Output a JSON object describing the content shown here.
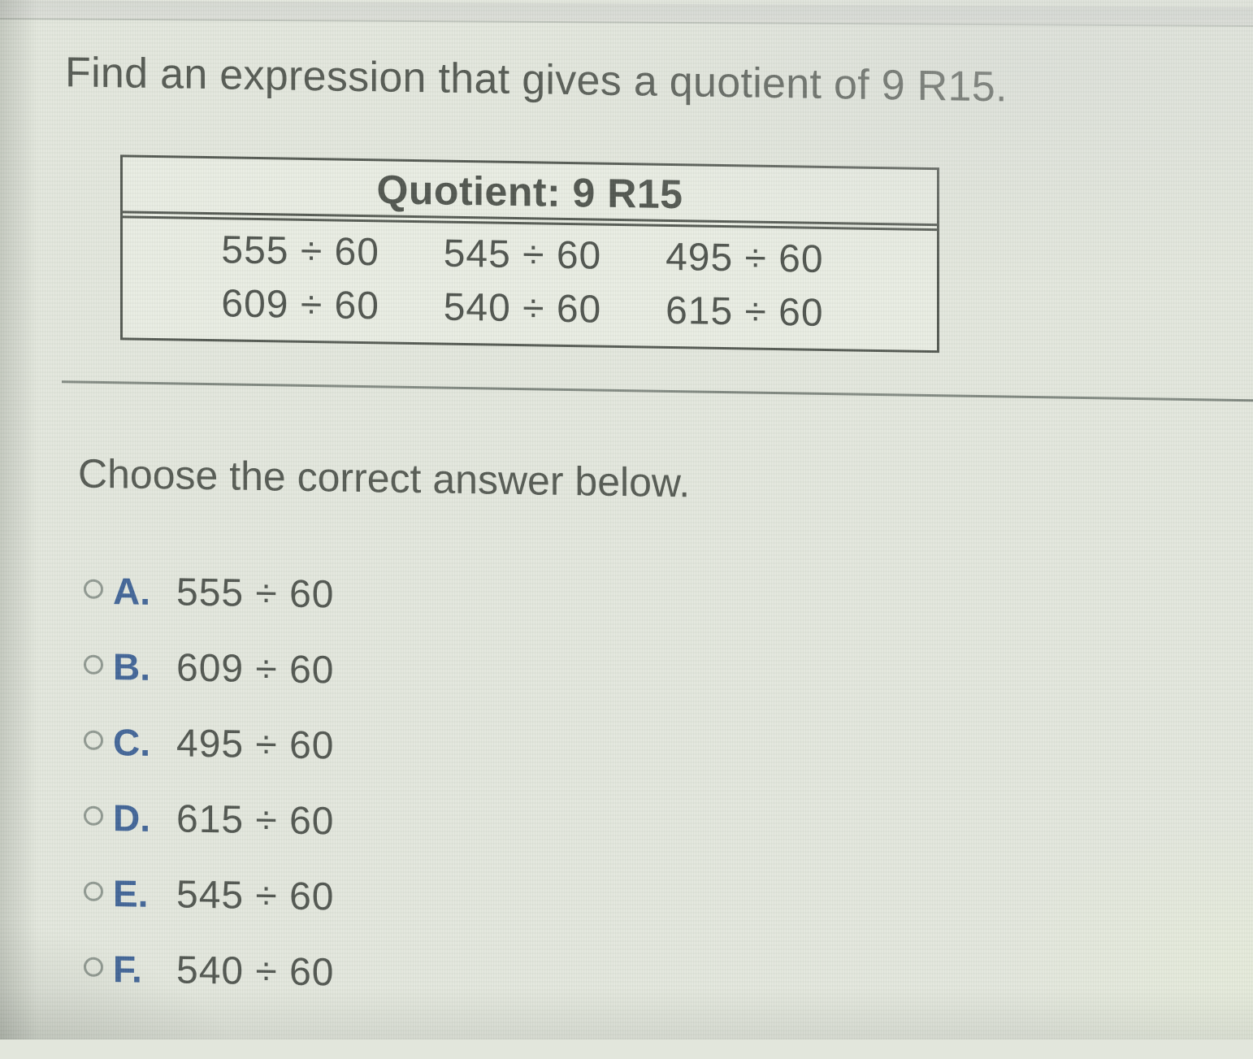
{
  "colors": {
    "background": "#e2e6dc",
    "text": "#51564f",
    "accent_blue": "#3d6195",
    "table_border": "#50554e",
    "divider": "#7d857d",
    "radio_ring": "#8d968e"
  },
  "question": {
    "prompt": "Find an expression that gives a quotient of 9 R15.",
    "table": {
      "header": "Quotient: 9 R15",
      "rows": [
        [
          "555 ÷ 60",
          "545 ÷ 60",
          "495 ÷ 60"
        ],
        [
          "609 ÷ 60",
          "540 ÷ 60",
          "615 ÷ 60"
        ]
      ]
    }
  },
  "answer_section": {
    "instruction": "Choose the correct answer below.",
    "options": [
      {
        "letter": "A.",
        "expression": "555 ÷ 60",
        "selected": false
      },
      {
        "letter": "B.",
        "expression": "609 ÷ 60",
        "selected": false
      },
      {
        "letter": "C.",
        "expression": "495 ÷ 60",
        "selected": false
      },
      {
        "letter": "D.",
        "expression": "615 ÷ 60",
        "selected": false
      },
      {
        "letter": "E.",
        "expression": "545 ÷ 60",
        "selected": false
      },
      {
        "letter": "F.",
        "expression": "540 ÷ 60",
        "selected": false
      }
    ]
  }
}
